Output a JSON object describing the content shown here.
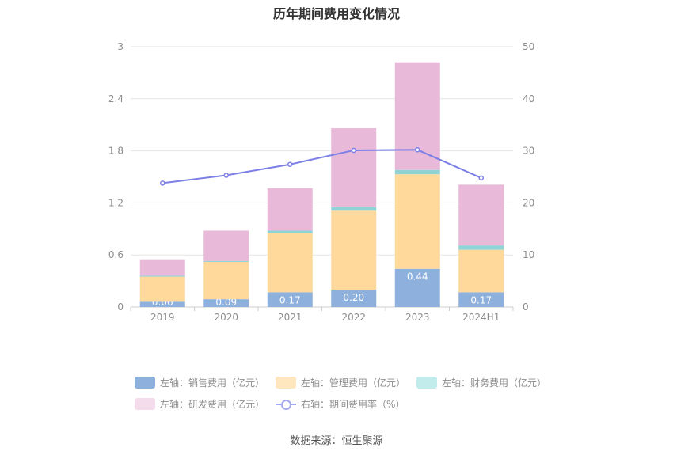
{
  "chart_data": {
    "type": "bar",
    "stacked": true,
    "title": "历年期间费用变化情况",
    "categories": [
      "2019",
      "2020",
      "2021",
      "2022",
      "2023",
      "2024H1"
    ],
    "y_left": {
      "ylim": [
        0,
        3
      ],
      "ticks": [
        "0",
        "0.6",
        "1.2",
        "1.8",
        "2.4",
        "3"
      ]
    },
    "y_right": {
      "ylim": [
        0,
        50
      ],
      "ticks": [
        "0",
        "10",
        "20",
        "30",
        "40",
        "50"
      ]
    },
    "grid": true,
    "legend_position": "bottom",
    "series": [
      {
        "name": "左轴：销售费用（亿元）",
        "axis": "left",
        "color": "#8eb0dc",
        "values": [
          0.06,
          0.09,
          0.17,
          0.2,
          0.44,
          0.17
        ],
        "labels": [
          "0.06",
          "0.09",
          "0.17",
          "0.20",
          "0.44",
          "0.17"
        ]
      },
      {
        "name": "左轴：管理费用（亿元）",
        "axis": "left",
        "color": "#ffd99b",
        "values": [
          0.29,
          0.43,
          0.68,
          0.91,
          1.09,
          0.49
        ]
      },
      {
        "name": "左轴：财务费用（亿元）",
        "axis": "left",
        "color": "#8fd3d6",
        "values": [
          0.01,
          0.01,
          0.03,
          0.04,
          0.05,
          0.05
        ]
      },
      {
        "name": "左轴：研发费用（亿元）",
        "axis": "left",
        "color": "#e8b9d9",
        "values": [
          0.19,
          0.35,
          0.49,
          0.91,
          1.24,
          0.7
        ]
      },
      {
        "name": "右轴：期间费用率（%）",
        "axis": "right",
        "type": "line",
        "color": "#7b7fe6",
        "values": [
          23.8,
          25.3,
          27.4,
          30.1,
          30.2,
          24.8
        ]
      }
    ],
    "source": "数据来源：恒生聚源"
  }
}
